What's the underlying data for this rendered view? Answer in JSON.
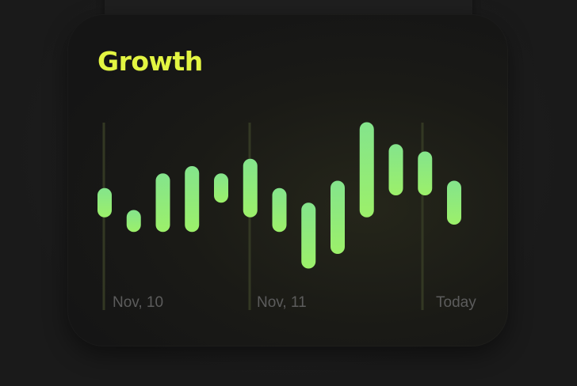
{
  "widget": {
    "title": "Growth",
    "title_color": "#e3f542"
  },
  "chart_data": {
    "type": "bar",
    "variant": "floating-range",
    "date_labels": [
      "Nov, 10",
      "Nov, 11",
      "Today"
    ],
    "ranges": [
      [
        3.5,
        5.5
      ],
      [
        2.5,
        4.0
      ],
      [
        2.5,
        6.5
      ],
      [
        2.5,
        7.0
      ],
      [
        4.5,
        6.5
      ],
      [
        3.5,
        7.5
      ],
      [
        2.5,
        5.5
      ],
      [
        0.0,
        4.5
      ],
      [
        1.0,
        6.0
      ],
      [
        3.5,
        10.0
      ],
      [
        5.0,
        8.5
      ],
      [
        5.0,
        8.0
      ],
      [
        3.0,
        6.0
      ]
    ],
    "ylim": [
      -1,
      11
    ],
    "grid": "vertical markers at date labels",
    "colors": {
      "bar_top": "#84e48c",
      "bar_bottom": "#9cf06a",
      "marker_line": "#333823",
      "label": "#5c5c5c"
    }
  }
}
